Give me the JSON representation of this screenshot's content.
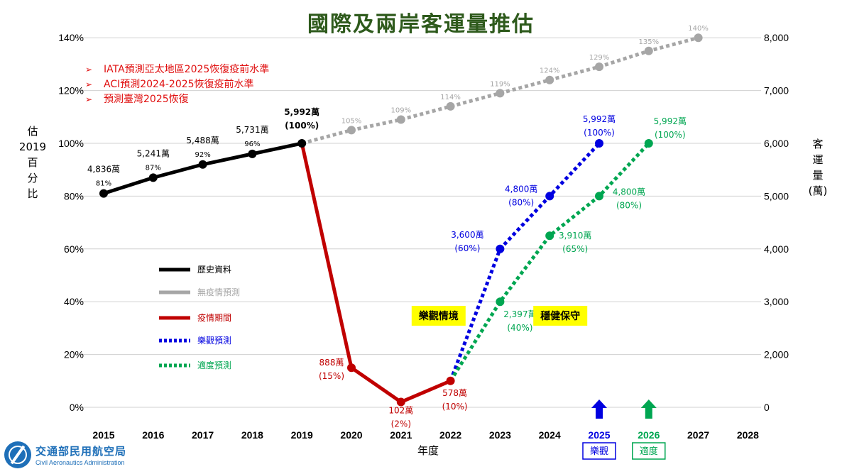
{
  "chart_data": {
    "type": "line",
    "title": "國際及兩岸客運量推估",
    "xlabel": "年度",
    "ylabel_left": [
      "估",
      "2019",
      "百",
      "分",
      "比"
    ],
    "ylabel_right": [
      "客",
      "運",
      "量",
      "(萬)"
    ],
    "categories": [
      "2015",
      "2016",
      "2017",
      "2018",
      "2019",
      "2020",
      "2021",
      "2022",
      "2023",
      "2024",
      "2025",
      "2026",
      "2027",
      "2028"
    ],
    "ylim_left": [
      0,
      140
    ],
    "ylim_right": [
      0,
      8000
    ],
    "left_ticks": [
      "0%",
      "20%",
      "40%",
      "60%",
      "80%",
      "100%",
      "120%",
      "140%"
    ],
    "right_ticks": [
      "0",
      "2,000",
      "3,000",
      "4,000",
      "5,000",
      "6,000",
      "7,000",
      "8,000"
    ],
    "grid": true,
    "series": [
      {
        "name": "歷史資料",
        "color": "#000000",
        "dashed": false,
        "points": [
          {
            "x": "2015",
            "y": 81,
            "labels": [
              "4,836萬",
              "81%"
            ]
          },
          {
            "x": "2016",
            "y": 87,
            "labels": [
              "5,241萬",
              "87%"
            ]
          },
          {
            "x": "2017",
            "y": 92,
            "labels": [
              "5,488萬",
              "92%"
            ]
          },
          {
            "x": "2018",
            "y": 96,
            "labels": [
              "5,731萬",
              "96%"
            ]
          },
          {
            "x": "2019",
            "y": 100,
            "labels": [
              "5,992萬",
              "(100%)"
            ]
          }
        ]
      },
      {
        "name": "無疫情預測",
        "color": "#a6a6a6",
        "dashed": true,
        "points": [
          {
            "x": "2019",
            "y": 100,
            "labels": []
          },
          {
            "x": "2020",
            "y": 105,
            "labels": [
              "105%"
            ]
          },
          {
            "x": "2021",
            "y": 109,
            "labels": [
              "109%"
            ]
          },
          {
            "x": "2022",
            "y": 114,
            "labels": [
              "114%"
            ]
          },
          {
            "x": "2023",
            "y": 119,
            "labels": [
              "119%"
            ]
          },
          {
            "x": "2024",
            "y": 124,
            "labels": [
              "124%"
            ]
          },
          {
            "x": "2025",
            "y": 129,
            "labels": [
              "129%"
            ]
          },
          {
            "x": "2026",
            "y": 135,
            "labels": [
              "135%"
            ]
          },
          {
            "x": "2027",
            "y": 140,
            "labels": [
              "140%"
            ]
          }
        ]
      },
      {
        "name": "疫情期間",
        "color": "#c00000",
        "dashed": false,
        "points": [
          {
            "x": "2019",
            "y": 100,
            "labels": []
          },
          {
            "x": "2020",
            "y": 15,
            "labels": [
              "888萬",
              "(15%)"
            ]
          },
          {
            "x": "2021",
            "y": 2,
            "labels": [
              "102萬",
              "(2%)"
            ]
          },
          {
            "x": "2022",
            "y": 10,
            "labels": [
              "578萬",
              "(10%)"
            ]
          }
        ]
      },
      {
        "name": "樂觀預測",
        "color": "#0000e0",
        "dashed": true,
        "points": [
          {
            "x": "2022",
            "y": 10,
            "labels": []
          },
          {
            "x": "2023",
            "y": 60,
            "labels": [
              "3,600萬",
              "(60%)"
            ]
          },
          {
            "x": "2024",
            "y": 80,
            "labels": [
              "4,800萬",
              "(80%)"
            ]
          },
          {
            "x": "2025",
            "y": 100,
            "labels": [
              "5,992萬",
              "(100%)"
            ]
          }
        ]
      },
      {
        "name": "適度預測",
        "color": "#00a651",
        "dashed": true,
        "points": [
          {
            "x": "2022",
            "y": 10,
            "labels": []
          },
          {
            "x": "2023",
            "y": 40,
            "labels": [
              "2,397萬",
              "(40%)"
            ]
          },
          {
            "x": "2024",
            "y": 65,
            "labels": [
              "3,910萬",
              "(65%)"
            ]
          },
          {
            "x": "2025",
            "y": 80,
            "labels": [
              "4,800萬",
              "(80%)"
            ]
          },
          {
            "x": "2026",
            "y": 100,
            "labels": [
              "5,992萬",
              "(100%)"
            ]
          }
        ]
      }
    ],
    "scenario_boxes": [
      {
        "text": "樂觀情境",
        "color": "#ffff00"
      },
      {
        "text": "穩健保守",
        "color": "#ffff00"
      }
    ],
    "recovery_markers": [
      {
        "year": "2025",
        "label": "樂觀",
        "color": "#0000e0"
      },
      {
        "year": "2026",
        "label": "適度",
        "color": "#00a651"
      }
    ]
  },
  "notes": [
    "IATA預測亞太地區2025恢復疫前水準",
    "ACI預測2024-2025恢復疫前水準",
    "預測臺灣2025恢復"
  ],
  "logo": {
    "name_zh": "交通部民用航空局",
    "name_en": "Civil Aeronautics Administration"
  }
}
